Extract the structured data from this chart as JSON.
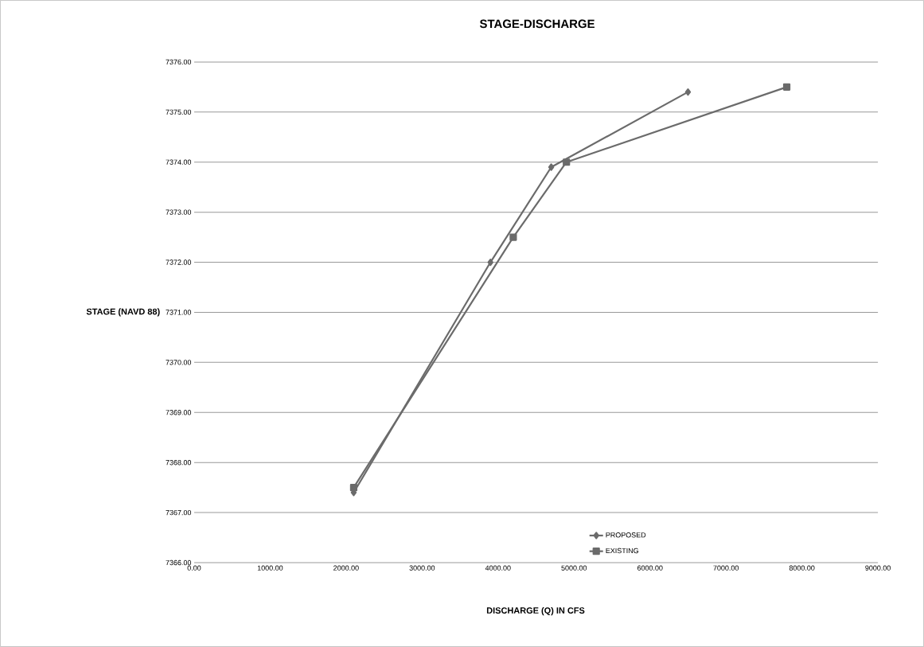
{
  "chart_data": {
    "type": "line",
    "title": "STAGE-DISCHARGE",
    "xlabel": "DISCHARGE (Q) IN CFS",
    "ylabel": "STAGE (NAVD 88)",
    "series": [
      {
        "name": "PROPOSED",
        "color": "#6b6b6b",
        "marker": "diamond",
        "x": [
          2100,
          3900,
          4700,
          6500
        ],
        "values": [
          7367.4,
          7372.0,
          7373.9,
          7375.4
        ]
      },
      {
        "name": "EXISTING",
        "color": "#6b6b6b",
        "marker": "square",
        "x": [
          2100,
          4200,
          4900,
          7800
        ],
        "values": [
          7367.5,
          7372.5,
          7374.0,
          7375.5
        ]
      }
    ],
    "xlim": [
      0,
      9000
    ],
    "xticks": [
      {
        "value": 0,
        "label": "0.00"
      },
      {
        "value": 1000,
        "label": "1000.00"
      },
      {
        "value": 2000,
        "label": "2000.00"
      },
      {
        "value": 3000,
        "label": "3000.00"
      },
      {
        "value": 4000,
        "label": "4000.00"
      },
      {
        "value": 5000,
        "label": "5000.00"
      },
      {
        "value": 6000,
        "label": "6000.00"
      },
      {
        "value": 7000,
        "label": "7000.00"
      },
      {
        "value": 8000,
        "label": "8000.00"
      },
      {
        "value": 9000,
        "label": "9000.00"
      }
    ],
    "ylim": [
      7366,
      7376
    ],
    "yticks": [
      {
        "value": 7366,
        "label": "7366.00"
      },
      {
        "value": 7367,
        "label": "7367.00"
      },
      {
        "value": 7368,
        "label": "7368.00"
      },
      {
        "value": 7369,
        "label": "7369.00"
      },
      {
        "value": 7370,
        "label": "7370.00"
      },
      {
        "value": 7371,
        "label": "7371.00"
      },
      {
        "value": 7372,
        "label": "7372.00"
      },
      {
        "value": 7373,
        "label": "7373.00"
      },
      {
        "value": 7374,
        "label": "7374.00"
      },
      {
        "value": 7375,
        "label": "7375.00"
      },
      {
        "value": 7376,
        "label": "7376.00"
      }
    ],
    "grid": "y",
    "legend": "bottom"
  }
}
